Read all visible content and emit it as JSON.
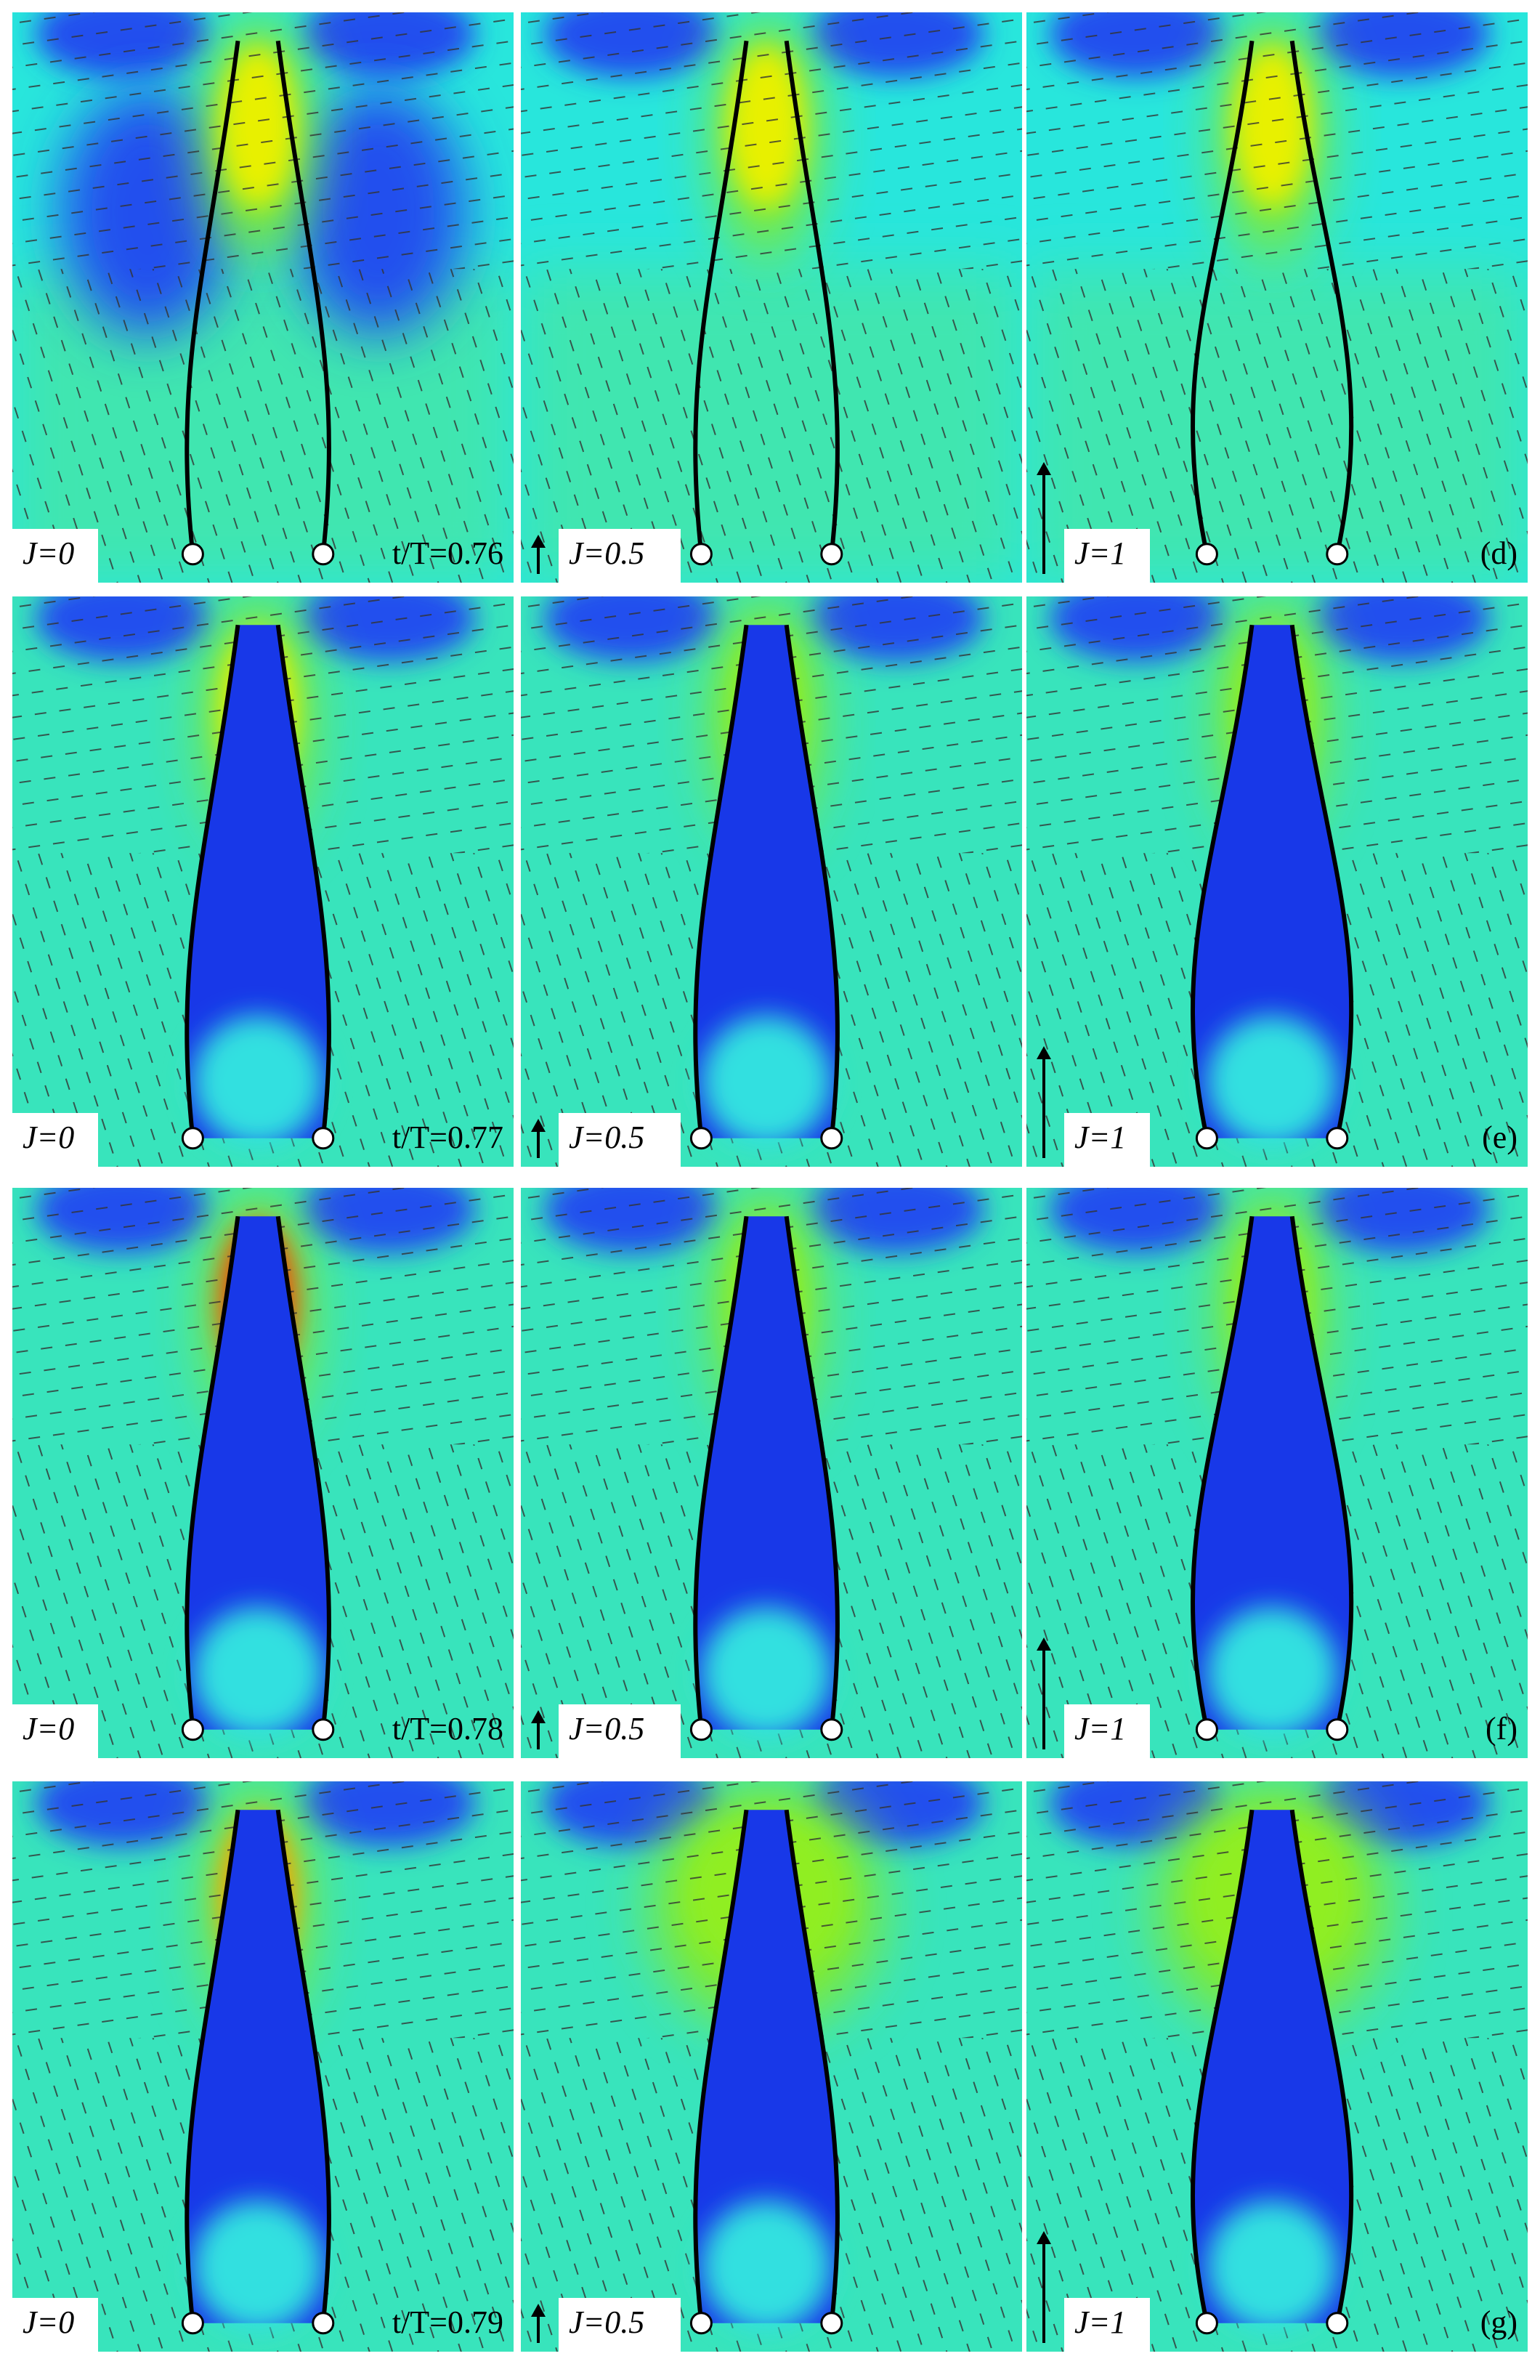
{
  "figure": {
    "rows": [
      {
        "time": "t/T=0.76",
        "label": "(d)",
        "panels": [
          {
            "J": "J=0"
          },
          {
            "J": "J=0.5"
          },
          {
            "J": "J=1"
          }
        ]
      },
      {
        "time": "t/T=0.77",
        "label": "(e)",
        "panels": [
          {
            "J": "J=0"
          },
          {
            "J": "J=0.5"
          },
          {
            "J": "J=1"
          }
        ]
      },
      {
        "time": "t/T=0.78",
        "label": "(f)",
        "panels": [
          {
            "J": "J=0"
          },
          {
            "J": "J=0.5"
          },
          {
            "J": "J=1"
          }
        ]
      },
      {
        "time": "t/T=0.79",
        "label": "(g)",
        "panels": [
          {
            "J": "J=0"
          },
          {
            "J": "J=0.5"
          },
          {
            "J": "J=1"
          }
        ]
      }
    ]
  }
}
